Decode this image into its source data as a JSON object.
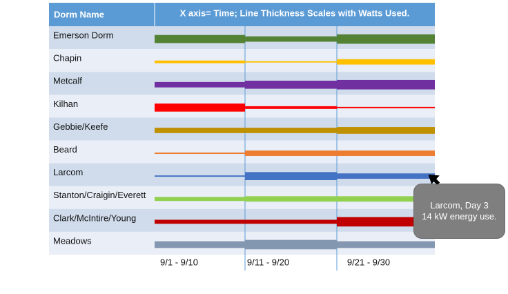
{
  "header": {
    "col1": "Dorm Name",
    "title": "X axis= Time; Line Thickness Scales with Watts Used."
  },
  "colors": {
    "header_bg": "#5b9bd5",
    "row_dark": "#d0dcec",
    "row_light": "#e9eef7",
    "divider": "#5b9bd5",
    "tooltip_bg": "#7f7f7f"
  },
  "chart_data": {
    "type": "line",
    "encoding": "line thickness",
    "x_ticks": [
      "9/1 - 9/10",
      "9/11 - 9/20",
      "9/21 - 9/30"
    ],
    "series": [
      {
        "name": "Emerson Dorm",
        "color": "#548235",
        "values": [
          6,
          4,
          7
        ]
      },
      {
        "name": "Chapin",
        "color": "#ffc000",
        "values": [
          2,
          1,
          4
        ]
      },
      {
        "name": "Metcalf",
        "color": "#7030a0",
        "values": [
          4,
          6,
          7
        ]
      },
      {
        "name": "Kilhan",
        "color": "#ff0000",
        "values": [
          6,
          2,
          1
        ]
      },
      {
        "name": "Gebbie/Keefe",
        "color": "#bf9000",
        "values": [
          4,
          4,
          5
        ]
      },
      {
        "name": "Beard",
        "color": "#ed7d31",
        "values": [
          1,
          4,
          4
        ]
      },
      {
        "name": "Larcom",
        "color": "#4472c4",
        "values": [
          1,
          6,
          4
        ]
      },
      {
        "name": "Stanton/Craigin/Everett",
        "color": "#92d050",
        "values": [
          3,
          4,
          4
        ]
      },
      {
        "name": "Clark/McIntire/Young",
        "color": "#c00000",
        "values": [
          3,
          3,
          7
        ]
      },
      {
        "name": "Meadows",
        "color": "#8497b0",
        "values": [
          5,
          7,
          5
        ]
      }
    ]
  },
  "tooltip": {
    "line1": "Larcom, Day 3",
    "line2": "14 kW energy use."
  }
}
